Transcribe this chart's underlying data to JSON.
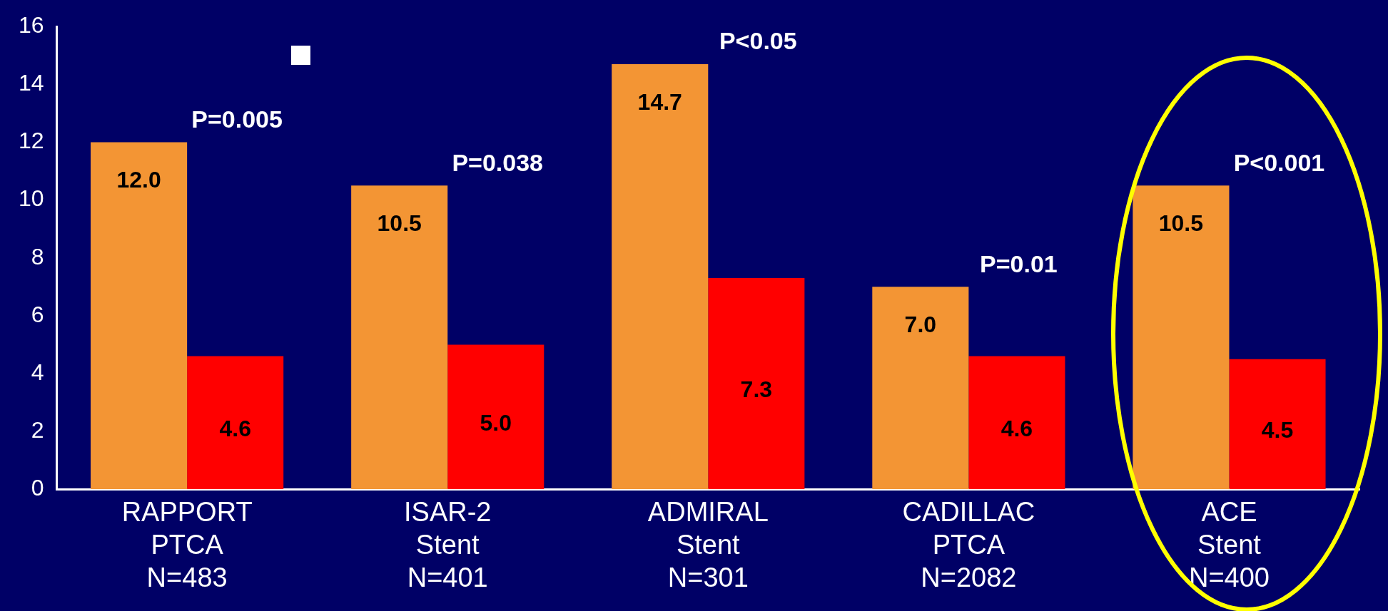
{
  "chart_data": {
    "type": "bar",
    "categories": [
      "RAPPORT\nPTCA\nN=483",
      "ISAR-2\nStent\nN=401",
      "ADMIRAL\nStent\nN=301",
      "CADILLAC\nPTCA\nN=2082",
      "ACE\nStent\nN=400"
    ],
    "series": [
      {
        "color": "#f39534",
        "values": [
          12.0,
          10.5,
          14.7,
          7.0,
          10.5
        ],
        "value_labels": [
          "12.0",
          "10.5",
          "14.7",
          "7.0",
          "10.5"
        ]
      },
      {
        "color": "#ff0000",
        "values": [
          4.6,
          5.0,
          7.3,
          4.6,
          4.5
        ],
        "value_labels": [
          "4.6",
          "5.0",
          "7.3",
          "4.6",
          "4.5"
        ]
      }
    ],
    "ylim": [
      0,
      16
    ],
    "yticks": [
      0,
      2,
      4,
      6,
      8,
      10,
      12,
      14,
      16
    ],
    "grid": false,
    "legend": false,
    "annotations": [
      "P=0.005",
      "P=0.038",
      "P<0.05",
      "P=0.01",
      "P<0.001"
    ]
  }
}
